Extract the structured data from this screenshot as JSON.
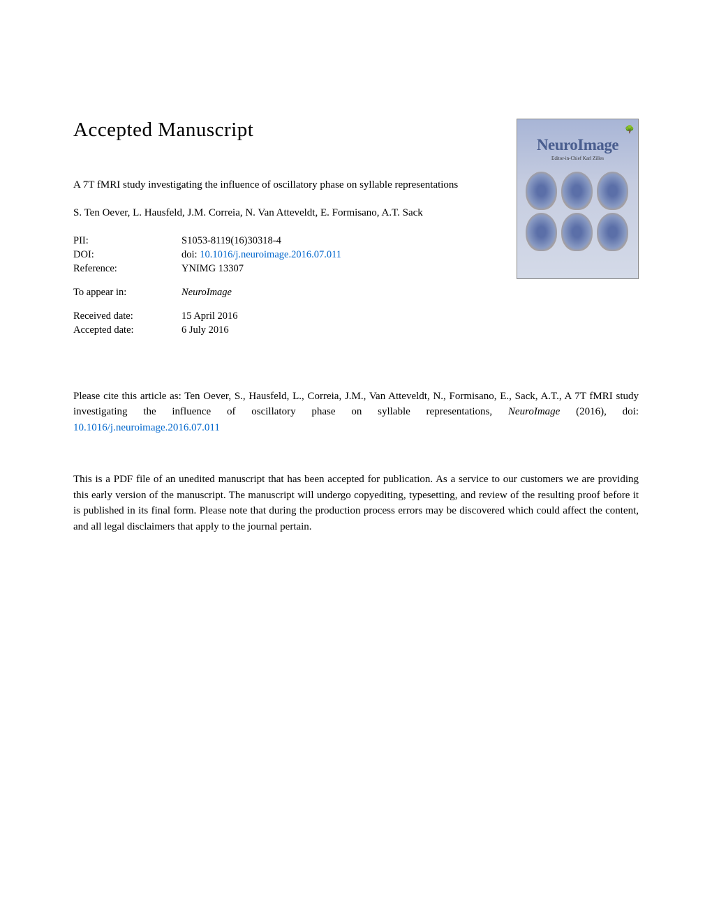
{
  "heading": "Accepted Manuscript",
  "journal_cover": {
    "title": "NeuroImage",
    "subtitle": "Editor-in-Chief\nKarl Zilles"
  },
  "article": {
    "title": "A 7T fMRI study investigating the influence of oscillatory phase on syllable representations",
    "authors": "S. Ten Oever, L. Hausfeld, J.M. Correia, N. Van Atteveldt, E. Formisano, A.T. Sack"
  },
  "metadata": {
    "pii_label": "PII:",
    "pii_value": "S1053-8119(16)30318-4",
    "doi_label": "DOI:",
    "doi_prefix": "doi: ",
    "doi_link": "10.1016/j.neuroimage.2016.07.011",
    "reference_label": "Reference:",
    "reference_value": "YNIMG 13307",
    "appear_label": "To appear in:",
    "appear_value": "NeuroImage",
    "received_label": "Received date:",
    "received_value": "15 April 2016",
    "accepted_label": "Accepted date:",
    "accepted_value": "6 July 2016"
  },
  "citation": {
    "text_before": "Please cite this article as: Ten Oever, S., Hausfeld, L., Correia, J.M., Van Atteveldt, N., Formisano, E., Sack, A.T., A 7T fMRI study investigating the influence of oscillatory phase on syllable representations, ",
    "journal_italic": "NeuroImage",
    "text_after": " (2016), doi: ",
    "link": "10.1016/j.neuroimage.2016.07.011"
  },
  "disclaimer": "This is a PDF file of an unedited manuscript that has been accepted for publication. As a service to our customers we are providing this early version of the manuscript. The manuscript will undergo copyediting, typesetting, and review of the resulting proof before it is published in its final form. Please note that during the production process errors may be discovered which could affect the content, and all legal disclaimers that apply to the journal pertain.",
  "colors": {
    "background": "#ffffff",
    "text": "#000000",
    "link": "#0066cc",
    "journal_title": "#4a5e8f"
  }
}
